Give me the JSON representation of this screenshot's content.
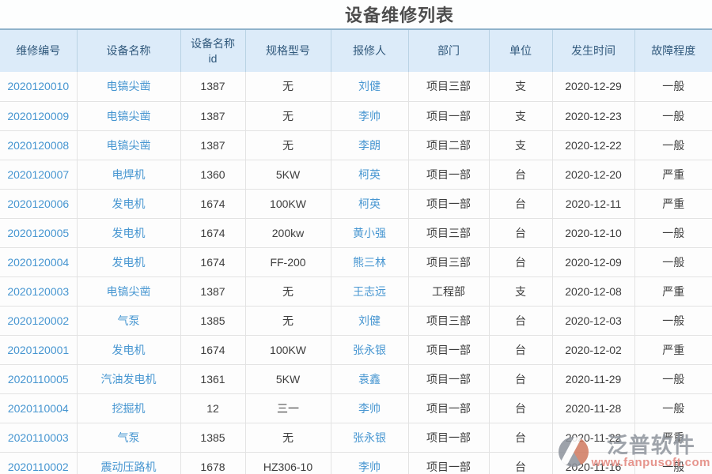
{
  "page": {
    "title": "设备维修列表"
  },
  "table": {
    "columns": [
      {
        "key": "repair-no",
        "label": "维修编号",
        "link": true
      },
      {
        "key": "equipment-name",
        "label": "设备名称",
        "link": true
      },
      {
        "key": "equipment-id",
        "label": "设备名称id",
        "link": false
      },
      {
        "key": "spec-model",
        "label": "规格型号",
        "link": false
      },
      {
        "key": "reporter",
        "label": "报修人",
        "link": true
      },
      {
        "key": "department",
        "label": "部门",
        "link": false
      },
      {
        "key": "unit",
        "label": "单位",
        "link": false
      },
      {
        "key": "occur-time",
        "label": "发生时间",
        "link": false
      },
      {
        "key": "fault-level",
        "label": "故障程度",
        "link": false
      }
    ],
    "rows": [
      {
        "cells": [
          "2020120010",
          "电镐尖凿",
          "1387",
          "无",
          "刘健",
          "项目三部",
          "支",
          "2020-12-29",
          "一般"
        ]
      },
      {
        "cells": [
          "2020120009",
          "电镐尖凿",
          "1387",
          "无",
          "李帅",
          "项目一部",
          "支",
          "2020-12-23",
          "一般"
        ]
      },
      {
        "cells": [
          "2020120008",
          "电镐尖凿",
          "1387",
          "无",
          "李朗",
          "项目二部",
          "支",
          "2020-12-22",
          "一般"
        ]
      },
      {
        "cells": [
          "2020120007",
          "电焊机",
          "1360",
          "5KW",
          "柯英",
          "项目一部",
          "台",
          "2020-12-20",
          "严重"
        ]
      },
      {
        "cells": [
          "2020120006",
          "发电机",
          "1674",
          "100KW",
          "柯英",
          "项目一部",
          "台",
          "2020-12-11",
          "严重"
        ]
      },
      {
        "cells": [
          "2020120005",
          "发电机",
          "1674",
          "200kw",
          "黄小强",
          "项目三部",
          "台",
          "2020-12-10",
          "一般"
        ]
      },
      {
        "cells": [
          "2020120004",
          "发电机",
          "1674",
          "FF-200",
          "熊三林",
          "项目三部",
          "台",
          "2020-12-09",
          "一般"
        ]
      },
      {
        "cells": [
          "2020120003",
          "电镐尖凿",
          "1387",
          "无",
          "王志远",
          "工程部",
          "支",
          "2020-12-08",
          "严重"
        ]
      },
      {
        "cells": [
          "2020120002",
          "气泵",
          "1385",
          "无",
          "刘健",
          "项目三部",
          "台",
          "2020-12-03",
          "一般"
        ]
      },
      {
        "cells": [
          "2020120001",
          "发电机",
          "1674",
          "100KW",
          "张永银",
          "项目一部",
          "台",
          "2020-12-02",
          "严重"
        ]
      },
      {
        "cells": [
          "2020110005",
          "汽油发电机",
          "1361",
          "5KW",
          "袁鑫",
          "项目一部",
          "台",
          "2020-11-29",
          "一般"
        ]
      },
      {
        "cells": [
          "2020110004",
          "挖掘机",
          "12",
          "三一",
          "李帅",
          "项目一部",
          "台",
          "2020-11-28",
          "一般"
        ]
      },
      {
        "cells": [
          "2020110003",
          "气泵",
          "1385",
          "无",
          "张永银",
          "项目一部",
          "台",
          "2020-11-22",
          "严重"
        ]
      },
      {
        "cells": [
          "2020110002",
          "震动压路机",
          "1678",
          "HZ306-10",
          "李帅",
          "项目一部",
          "台",
          "2020-11-16",
          "一般"
        ]
      }
    ]
  },
  "watermark": {
    "brand": "泛普软件",
    "url": "www.fanpusoft.com"
  },
  "colors": {
    "header_bg": "#dcebf9",
    "header_text": "#325a7d",
    "header_top_border": "#8fb3cb",
    "link_blue": "#4796d1",
    "body_text": "#3d3d3d",
    "grid_line": "#e3e3e3",
    "title_text": "#4d4d4d",
    "watermark_gray": "#8f959d",
    "watermark_red": "#e2837a"
  }
}
